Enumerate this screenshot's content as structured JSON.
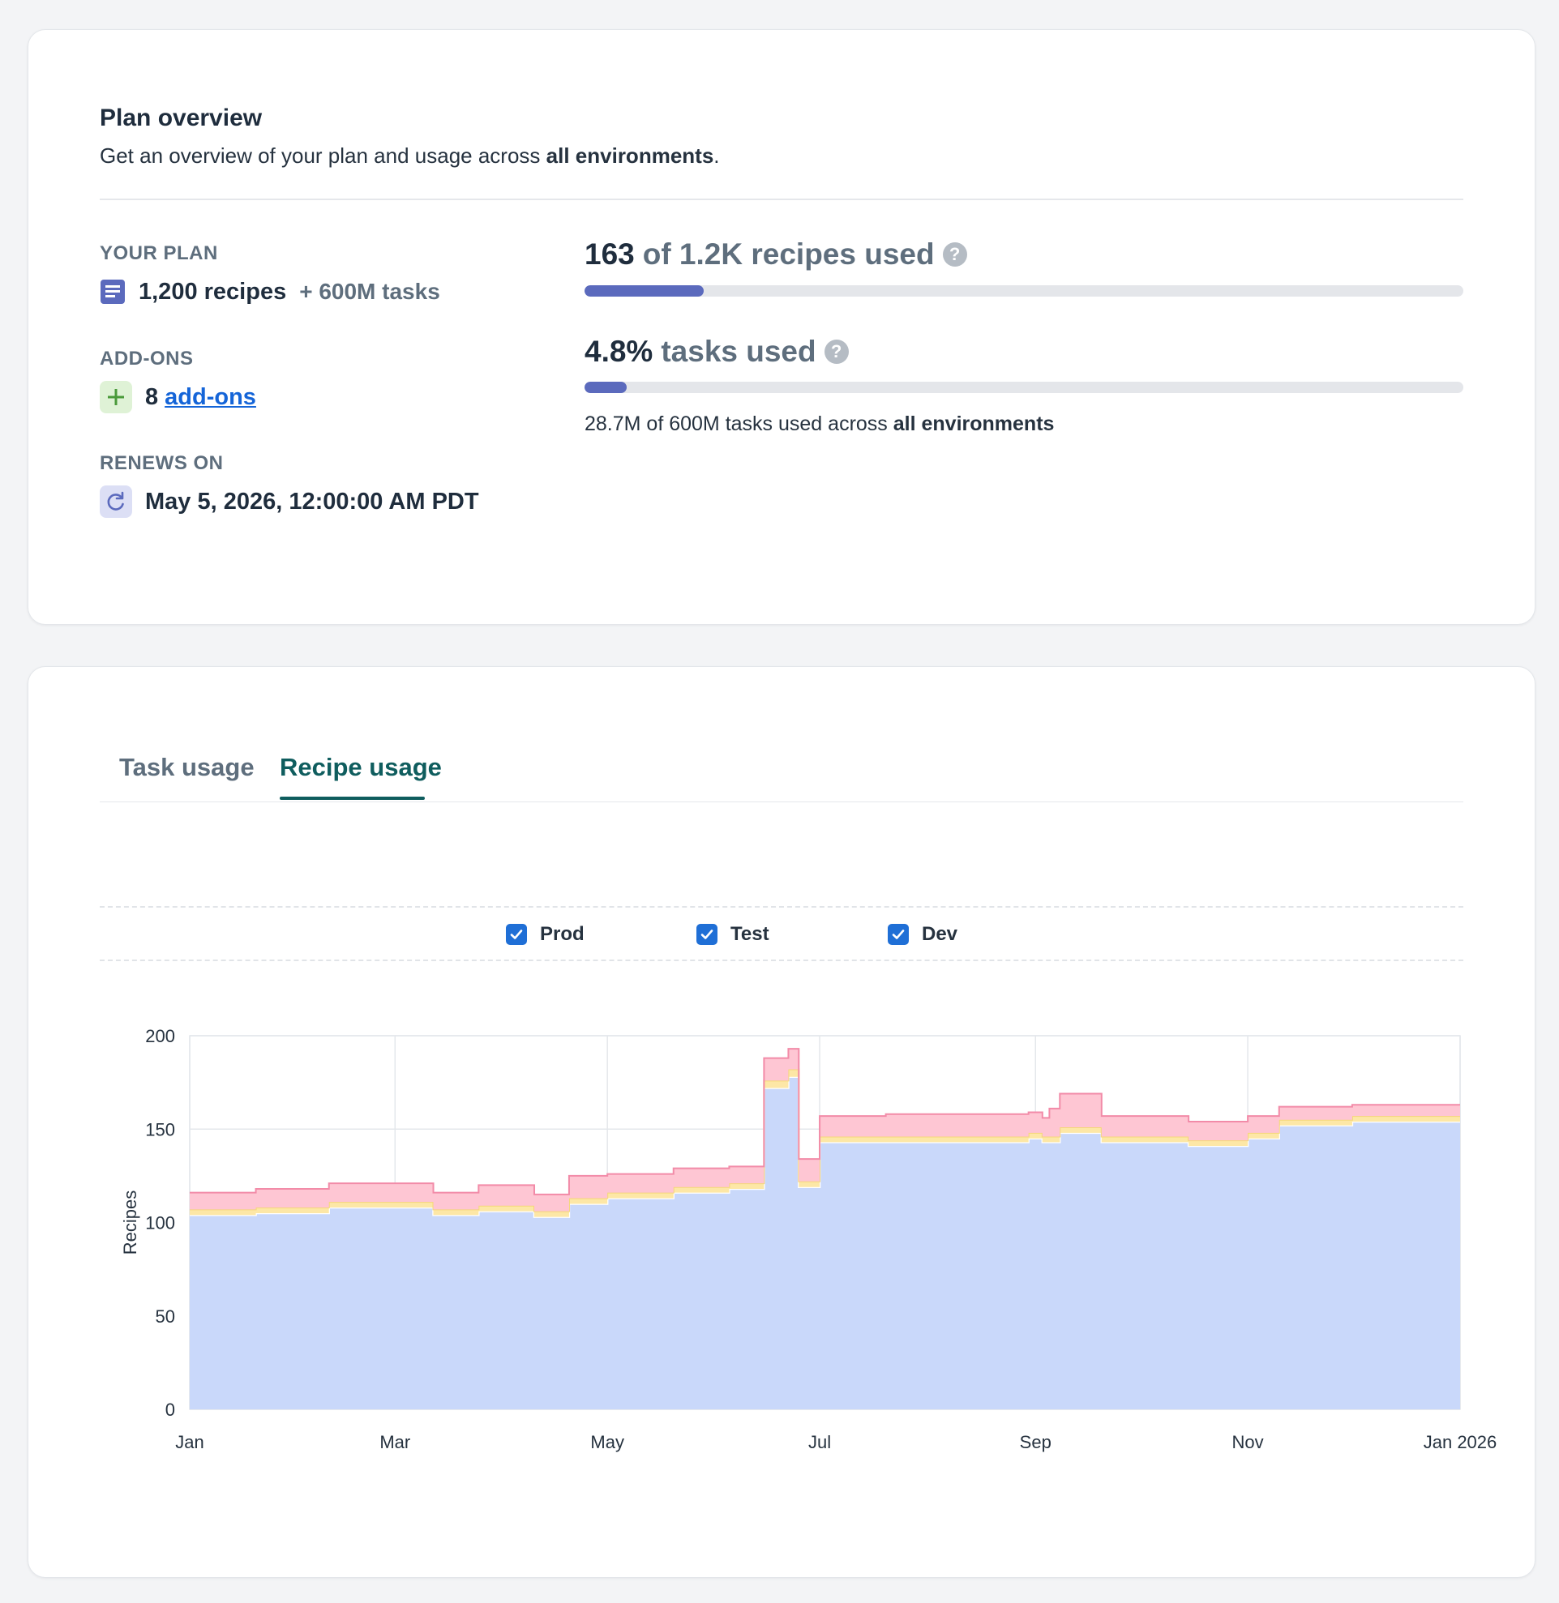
{
  "plan_overview": {
    "title": "Plan overview",
    "subtitle_prefix": "Get an overview of your plan and usage across ",
    "subtitle_bold": "all environments",
    "subtitle_suffix": ".",
    "your_plan": {
      "label": "YOUR PLAN",
      "recipes": "1,200 recipes",
      "tasks": "+ 600M tasks",
      "icon": "document-icon"
    },
    "add_ons": {
      "label": "ADD-ONS",
      "count": "8",
      "link_text": "add-ons",
      "icon": "plus-icon"
    },
    "renews_on": {
      "label": "RENEWS ON",
      "date": "May 5, 2026, 12:00:00 AM PDT",
      "icon": "refresh-icon"
    },
    "recipes_usage": {
      "number": "163",
      "text": "of 1.2K recipes used",
      "fraction": 0.1358
    },
    "tasks_usage": {
      "number": "4.8%",
      "text": "tasks used",
      "fraction": 0.048,
      "caption_prefix": "28.7M of 600M tasks used across ",
      "caption_bold": "all environments"
    }
  },
  "usage": {
    "tabs": [
      {
        "label": "Task usage",
        "active": false
      },
      {
        "label": "Recipe usage",
        "active": true
      }
    ],
    "legend": [
      {
        "label": "Prod",
        "checked": true
      },
      {
        "label": "Test",
        "checked": true
      },
      {
        "label": "Dev",
        "checked": true
      }
    ]
  },
  "colors": {
    "prod": "#c9d8fa",
    "test": "#fde7a6",
    "dev": "#fec6d3",
    "dev_line": "#f28ba8",
    "accent_bar": "#5b6abd",
    "tab_active": "#0f5d5e"
  },
  "chart_data": {
    "type": "area",
    "stacked": true,
    "ylabel": "Recipes",
    "xlabel": "",
    "ylim": [
      0,
      200
    ],
    "yticks": [
      "0",
      "50",
      "100",
      "150",
      "200"
    ],
    "xticks": [
      "Jan",
      "Mar",
      "May",
      "Jul",
      "Sep",
      "Nov",
      "Jan 2026"
    ],
    "x_dates": [
      "2025-01-01",
      "2025-01-20",
      "2025-02-10",
      "2025-03-01",
      "2025-03-12",
      "2025-03-25",
      "2025-04-10",
      "2025-04-20",
      "2025-05-01",
      "2025-05-20",
      "2025-06-05",
      "2025-06-15",
      "2025-06-18",
      "2025-06-22",
      "2025-06-25",
      "2025-07-01",
      "2025-07-20",
      "2025-08-10",
      "2025-08-30",
      "2025-09-03",
      "2025-09-05",
      "2025-09-08",
      "2025-09-20",
      "2025-10-01",
      "2025-10-15",
      "2025-11-01",
      "2025-11-05",
      "2025-11-10",
      "2025-12-01",
      "2026-01-01"
    ],
    "series": [
      {
        "name": "Prod",
        "values": [
          104,
          105,
          108,
          108,
          104,
          106,
          103,
          110,
          113,
          116,
          118,
          172,
          172,
          178,
          119,
          143,
          143,
          143,
          145,
          143,
          143,
          148,
          143,
          143,
          141,
          145,
          145,
          152,
          154,
          154
        ]
      },
      {
        "name": "Test",
        "values": [
          3,
          3,
          3,
          3,
          3,
          3,
          3,
          3,
          3,
          3,
          3,
          4,
          4,
          4,
          3,
          3,
          3,
          3,
          3,
          3,
          3,
          3,
          3,
          3,
          3,
          3,
          3,
          3,
          3,
          3
        ]
      },
      {
        "name": "Dev",
        "values": [
          9,
          10,
          10,
          10,
          9,
          11,
          9,
          12,
          10,
          10,
          9,
          12,
          12,
          11,
          12,
          11,
          12,
          12,
          11,
          10,
          15,
          18,
          11,
          11,
          10,
          9,
          9,
          7,
          6,
          6
        ]
      }
    ]
  }
}
